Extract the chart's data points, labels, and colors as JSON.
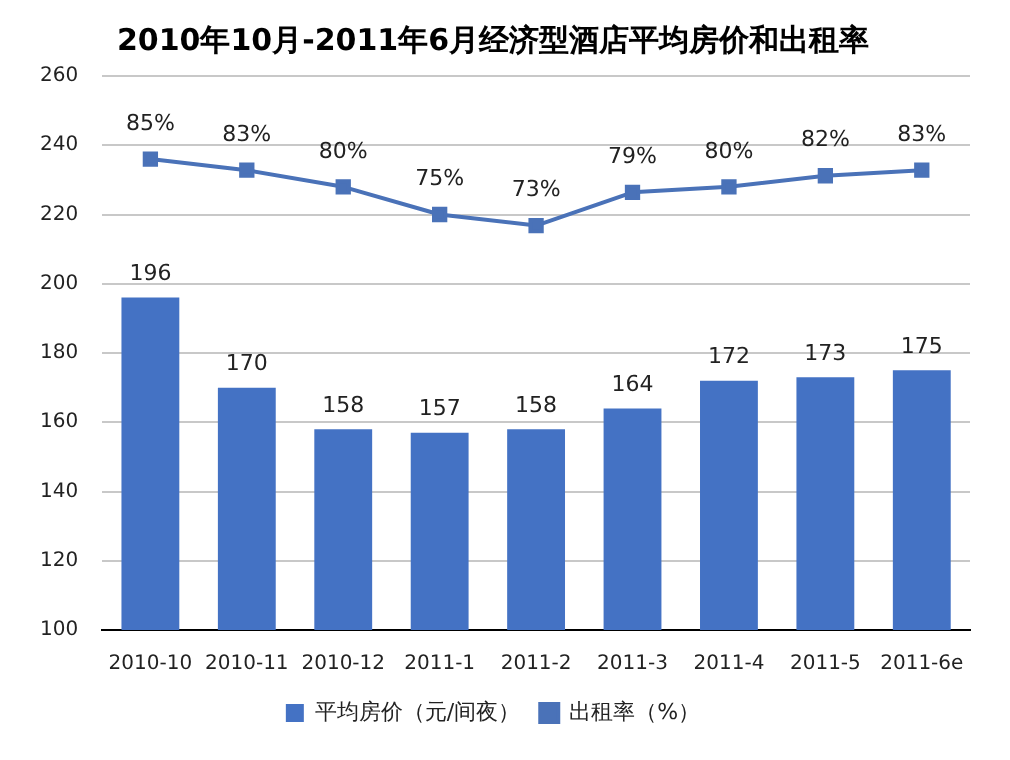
{
  "chart_data": {
    "type": "bar",
    "title": "2010年10月-2011年6月经济型酒店平均房价和出租率",
    "categories": [
      "2010-10",
      "2010-11",
      "2010-12",
      "2011-1",
      "2011-2",
      "2011-3",
      "2011-4",
      "2011-5",
      "2011-6e"
    ],
    "series": [
      {
        "name": "平均房价（元/间夜）",
        "color": "#4472c4",
        "values": [
          196,
          170,
          158,
          157,
          158,
          164,
          172,
          173,
          175
        ],
        "value_labels": [
          "196",
          "170",
          "158",
          "157",
          "158",
          "164",
          "172",
          "173",
          "175"
        ]
      },
      {
        "name": "出租率（%）",
        "type": "line",
        "axis": "y2",
        "color": "#4a72b8",
        "marker": "square",
        "values": [
          85,
          83,
          80,
          75,
          73,
          79,
          80,
          82,
          83
        ],
        "value_labels": [
          "85%",
          "83%",
          "80%",
          "75%",
          "73%",
          "79%",
          "80%",
          "82%",
          "83%"
        ]
      }
    ],
    "ylim": [
      100,
      260
    ],
    "yticks": [
      100,
      120,
      140,
      160,
      180,
      200,
      220,
      240,
      260
    ],
    "y2lim": [
      0,
      100
    ],
    "tick_labels": "xy",
    "grid": "y",
    "legend": "bottom"
  }
}
